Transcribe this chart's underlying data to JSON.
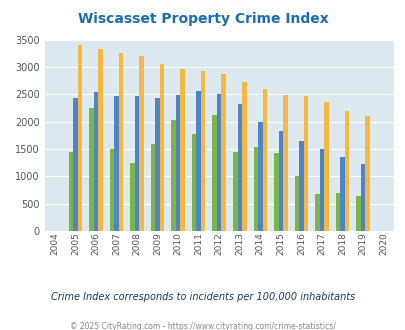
{
  "title": "Wiscasset Property Crime Index",
  "years": [
    2004,
    2005,
    2006,
    2007,
    2008,
    2009,
    2010,
    2011,
    2012,
    2013,
    2014,
    2015,
    2016,
    2017,
    2018,
    2019,
    2020
  ],
  "wiscasset": [
    0,
    1450,
    2250,
    1500,
    1250,
    1600,
    2030,
    1780,
    2130,
    1450,
    1540,
    1420,
    1000,
    680,
    690,
    640,
    0
  ],
  "maine": [
    0,
    2430,
    2540,
    2460,
    2470,
    2440,
    2490,
    2560,
    2510,
    2330,
    1990,
    1820,
    1640,
    1500,
    1350,
    1230,
    0
  ],
  "national": [
    0,
    3410,
    3330,
    3250,
    3200,
    3050,
    2960,
    2920,
    2870,
    2720,
    2590,
    2490,
    2460,
    2360,
    2190,
    2110,
    0
  ],
  "wiscasset_color": "#7ab648",
  "maine_color": "#4f85c8",
  "national_color": "#f5b942",
  "bg_color": "#dce9f0",
  "ylim": [
    0,
    3500
  ],
  "yticks": [
    0,
    500,
    1000,
    1500,
    2000,
    2500,
    3000,
    3500
  ],
  "subtitle": "Crime Index corresponds to incidents per 100,000 inhabitants",
  "footer": "© 2025 CityRating.com - https://www.cityrating.com/crime-statistics/",
  "title_color": "#1a6db5",
  "subtitle_color": "#1a3a5c",
  "footer_color": "#888888"
}
